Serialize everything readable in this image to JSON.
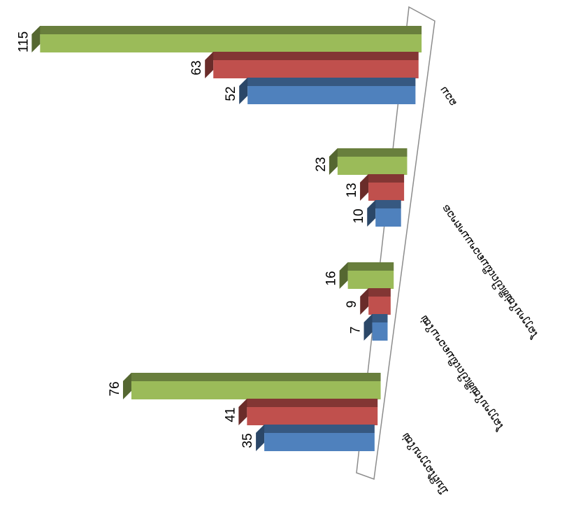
{
  "chart_data": {
    "type": "bar",
    "orientation": "horizontal-3d",
    "rotated": true,
    "categories": [
      "ມົນຕີໂລງງານໃໝ່",
      "ໂລງງານໃໝ່ທີ່ເປີດເພີ່ມຄວາມໃໝ່",
      "ໂລງງານໃໝ່ທີ່ເປີດເພີ່ມຄວາມມາຕາວຣ",
      "ລວມ"
    ],
    "series": [
      {
        "values": [
          35,
          7,
          10,
          52
        ],
        "color": "#4f81bd"
      },
      {
        "values": [
          41,
          9,
          13,
          63
        ],
        "color": "#c0504d"
      },
      {
        "values": [
          76,
          16,
          23,
          115
        ],
        "color": "#9bbb59"
      }
    ],
    "data_labels": true,
    "title": "",
    "xlabel": "",
    "ylabel": "",
    "grid": false,
    "legend": "none"
  }
}
